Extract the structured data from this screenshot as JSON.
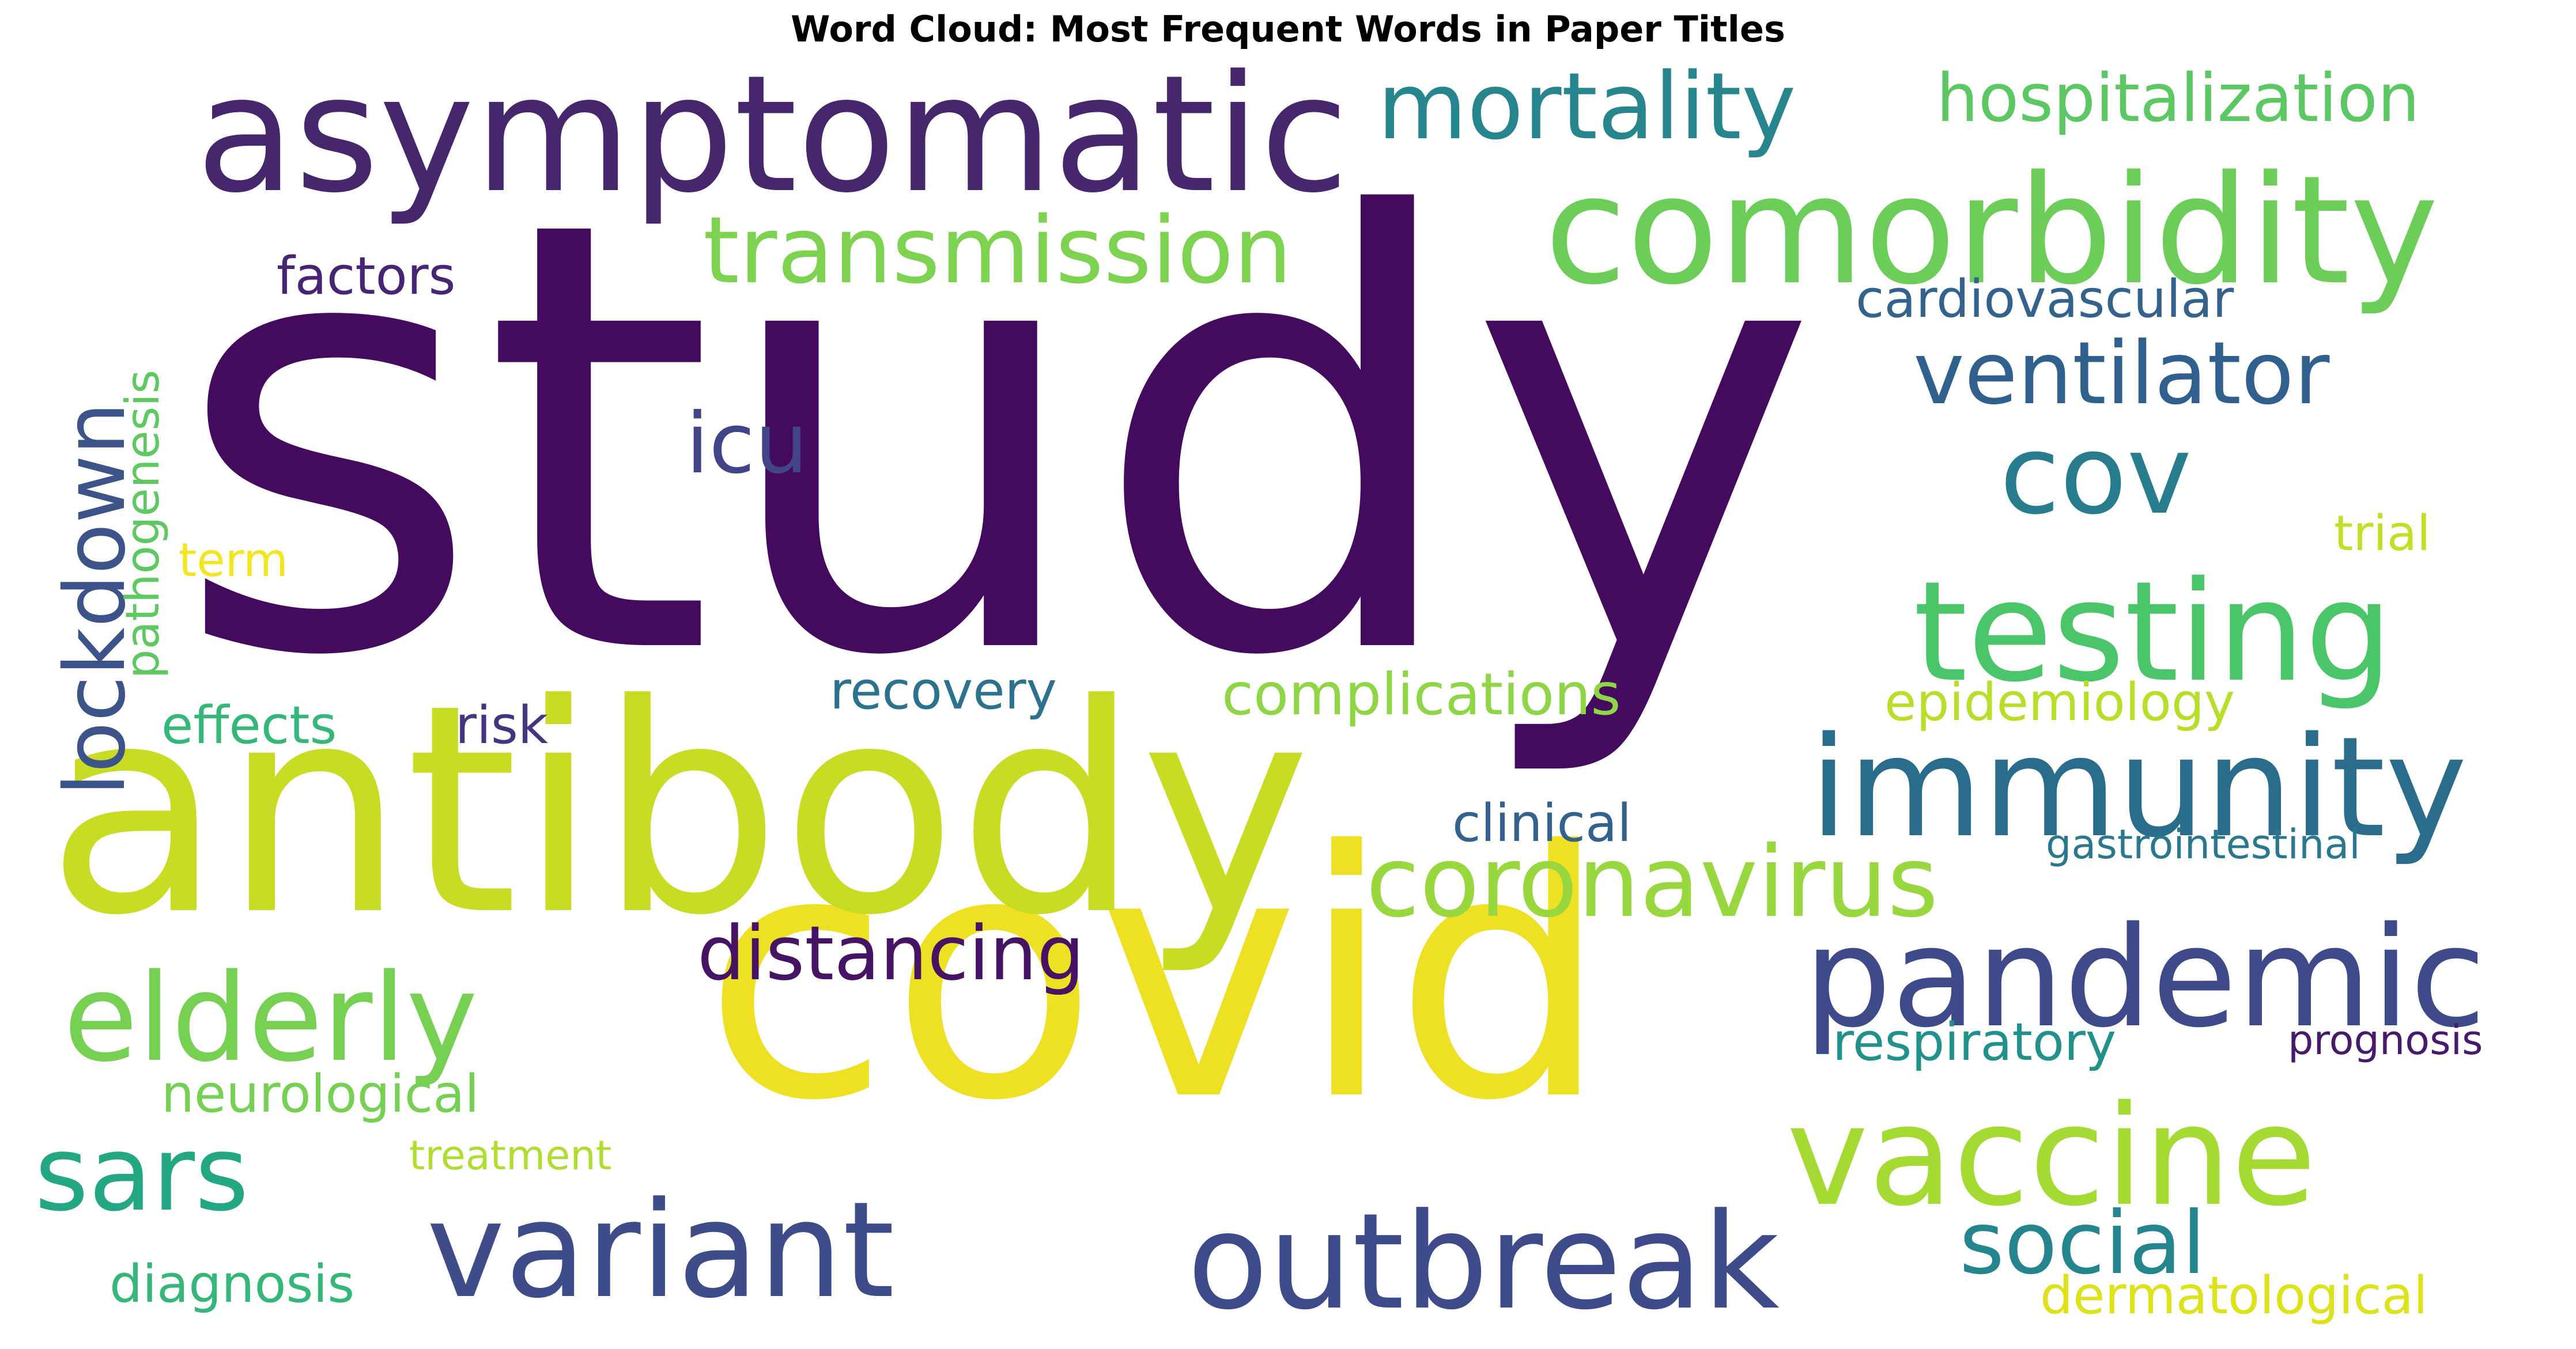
{
  "title": "Word Cloud: Most Frequent Words in Paper Titles",
  "chart_data": {
    "type": "wordcloud",
    "title": "Word Cloud: Most Frequent Words in Paper Titles",
    "words": [
      {
        "text": "study",
        "weight": 100,
        "color": "#440a5e"
      },
      {
        "text": "covid",
        "weight": 62,
        "color": "#eee022"
      },
      {
        "text": "antibody",
        "weight": 54,
        "color": "#c8dc23"
      },
      {
        "text": "asymptomatic",
        "weight": 30,
        "color": "#46266c"
      },
      {
        "text": "comorbidity",
        "weight": 27,
        "color": "#6cce58"
      },
      {
        "text": "immunity",
        "weight": 25,
        "color": "#2a6c8c"
      },
      {
        "text": "pandemic",
        "weight": 25,
        "color": "#3f4a8a"
      },
      {
        "text": "testing",
        "weight": 25,
        "color": "#4bc56a"
      },
      {
        "text": "vaccine",
        "weight": 25,
        "color": "#a4da32"
      },
      {
        "text": "outbreak",
        "weight": 24,
        "color": "#3e4b8a"
      },
      {
        "text": "variant",
        "weight": 24,
        "color": "#3e4d8a"
      },
      {
        "text": "elderly",
        "weight": 22,
        "color": "#76d153"
      },
      {
        "text": "cov",
        "weight": 20,
        "color": "#277c8e"
      },
      {
        "text": "sars",
        "weight": 19,
        "color": "#24a883"
      },
      {
        "text": "coronavirus",
        "weight": 18,
        "color": "#98d83e"
      },
      {
        "text": "mortality",
        "weight": 17,
        "color": "#27858d"
      },
      {
        "text": "transmission",
        "weight": 17,
        "color": "#7dd250"
      },
      {
        "text": "ventilator",
        "weight": 16,
        "color": "#30608d"
      },
      {
        "text": "social",
        "weight": 16,
        "color": "#25858e"
      },
      {
        "text": "lockdown",
        "weight": 15,
        "color": "#3c548a"
      },
      {
        "text": "icu",
        "weight": 15,
        "color": "#414487"
      },
      {
        "text": "distancing",
        "weight": 13,
        "color": "#471365"
      },
      {
        "text": "hospitalization",
        "weight": 12,
        "color": "#5cc863"
      },
      {
        "text": "complications",
        "weight": 10,
        "color": "#8ed645"
      },
      {
        "text": "cardiovascular",
        "weight": 9,
        "color": "#33638d"
      },
      {
        "text": "recovery",
        "weight": 9,
        "color": "#2c728e"
      },
      {
        "text": "clinical",
        "weight": 9,
        "color": "#33638d"
      },
      {
        "text": "effects",
        "weight": 9,
        "color": "#35b779"
      },
      {
        "text": "factors",
        "weight": 9,
        "color": "#482475"
      },
      {
        "text": "neurological",
        "weight": 9,
        "color": "#75d054"
      },
      {
        "text": "respiratory",
        "weight": 9,
        "color": "#21918c"
      },
      {
        "text": "diagnosis",
        "weight": 9,
        "color": "#35b779"
      },
      {
        "text": "dermatological",
        "weight": 9,
        "color": "#dde318"
      },
      {
        "text": "epidemiology",
        "weight": 9,
        "color": "#b8de29"
      },
      {
        "text": "risk",
        "weight": 9,
        "color": "#463480"
      },
      {
        "text": "pathogenesis",
        "weight": 9,
        "color": "#5ec962"
      },
      {
        "text": "trial",
        "weight": 9,
        "color": "#c0df25"
      },
      {
        "text": "term",
        "weight": 8,
        "color": "#f4e61e"
      },
      {
        "text": "prognosis",
        "weight": 7,
        "color": "#481a6c"
      },
      {
        "text": "treatment",
        "weight": 7,
        "color": "#b0dd2f"
      },
      {
        "text": "gastrointestinal",
        "weight": 7,
        "color": "#2a788e"
      }
    ]
  }
}
